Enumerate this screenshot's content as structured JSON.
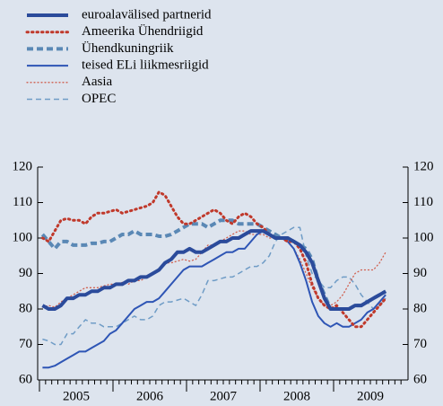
{
  "chart_data": {
    "type": "line",
    "categories": [
      null,
      null,
      null,
      null,
      null,
      null,
      "2005",
      null,
      null,
      null,
      null,
      null,
      null,
      null,
      null,
      null,
      null,
      null,
      "2006",
      null,
      null,
      null,
      null,
      null,
      null,
      null,
      null,
      null,
      null,
      null,
      "2007",
      null,
      null,
      null,
      null,
      null,
      null,
      null,
      null,
      null,
      null,
      null,
      "2008",
      null,
      null,
      null,
      null,
      null,
      null,
      null,
      null,
      null,
      null,
      null,
      "2009",
      null,
      null
    ],
    "ylim": [
      60,
      120
    ],
    "yticks": [
      60,
      70,
      80,
      90,
      100,
      110,
      120
    ],
    "y2lim": [
      60,
      120
    ],
    "y2ticks": [
      60,
      70,
      80,
      90,
      100,
      110,
      120
    ],
    "series": [
      {
        "name": "euroalavälised partnerid",
        "color": "#2b4b9b",
        "style": "solid",
        "width": 4,
        "values": [
          81,
          80,
          80,
          81,
          83,
          83,
          84,
          84,
          85,
          85,
          86,
          86,
          87,
          87,
          88,
          88,
          89,
          89,
          90,
          91,
          93,
          94,
          96,
          96,
          97,
          96,
          96,
          97,
          98,
          99,
          99,
          100,
          100,
          101,
          102,
          102,
          102,
          101,
          100,
          100,
          100,
          99,
          98,
          96,
          93,
          88,
          83,
          80,
          80,
          80,
          80,
          81,
          81,
          82,
          83,
          84,
          85
        ]
      },
      {
        "name": "Ameerika Ühendriigid",
        "color": "#c0392b",
        "style": "dotted",
        "width": 3,
        "values": [
          100,
          99,
          102,
          105,
          105.5,
          105,
          105,
          104,
          106,
          107,
          107,
          107.5,
          108,
          107,
          107.5,
          108,
          108.5,
          109,
          110,
          113,
          112,
          109,
          106,
          104,
          104,
          105,
          106,
          107,
          108,
          107,
          105,
          104,
          106,
          107,
          106,
          104,
          103,
          101,
          100,
          100,
          99,
          99,
          97,
          93,
          87,
          83,
          81,
          80,
          81,
          79,
          77,
          75,
          75,
          77,
          79,
          81,
          83
        ]
      },
      {
        "name": "Ühendkuningriik",
        "color": "#5a88b5",
        "style": "dashed",
        "width": 4,
        "values": [
          101,
          99,
          97,
          99,
          99,
          98,
          98,
          98,
          98.5,
          98.5,
          99,
          99,
          100,
          101,
          101,
          102,
          101,
          101,
          101,
          100.5,
          100.5,
          101,
          102,
          103,
          104,
          104,
          104,
          103,
          104,
          105,
          105,
          105,
          104,
          104,
          104,
          104,
          103,
          102,
          101,
          100,
          100,
          99,
          98,
          97,
          94,
          88,
          84,
          80,
          80,
          80,
          80,
          81,
          81,
          82,
          83,
          84,
          85
        ]
      },
      {
        "name": "teised ELi liikmesriigid",
        "color": "#2e55b5",
        "style": "solid",
        "width": 2,
        "values": [
          63.5,
          63.5,
          64,
          65,
          66,
          67,
          68,
          68,
          69,
          70,
          71,
          73,
          74,
          76,
          78,
          80,
          81,
          82,
          82,
          83,
          85,
          87,
          89,
          91,
          92,
          92,
          92,
          93,
          94,
          95,
          96,
          96,
          97,
          97,
          99,
          101,
          102,
          101,
          100,
          100,
          99,
          97,
          93,
          88,
          82,
          78,
          76,
          75,
          76,
          75,
          75,
          76,
          77,
          79,
          80,
          82,
          84
        ]
      },
      {
        "name": "Aasia",
        "color": "#d0604f",
        "style": "thindot",
        "width": 1.3,
        "values": [
          80.5,
          81,
          80.5,
          82,
          83,
          84,
          85,
          86,
          86,
          86,
          86.5,
          87,
          87,
          87.5,
          87,
          88,
          88,
          89,
          90,
          91,
          93,
          93,
          93.5,
          94,
          93.5,
          94,
          96,
          98,
          98,
          99,
          100,
          101,
          102,
          102,
          101,
          101,
          101,
          100,
          100,
          100,
          99,
          97,
          94,
          90,
          86,
          83,
          81,
          81,
          82,
          84,
          87,
          90,
          91,
          91,
          91,
          93,
          96
        ]
      },
      {
        "name": "OPEC",
        "color": "#6f9cc6",
        "style": "thindash",
        "width": 1.5,
        "values": [
          71.5,
          71,
          70,
          70,
          73,
          73,
          75,
          77,
          76,
          76,
          75,
          75,
          75,
          76,
          77,
          78,
          77,
          77,
          78,
          81,
          82,
          82,
          82.5,
          83,
          82,
          81,
          84,
          88,
          88,
          88.5,
          89,
          89,
          90,
          91,
          92,
          92,
          93,
          95,
          99,
          101,
          102,
          103,
          103,
          95,
          90,
          88,
          86,
          86,
          88,
          89,
          89,
          87,
          84,
          82,
          80,
          81,
          83
        ]
      }
    ]
  }
}
